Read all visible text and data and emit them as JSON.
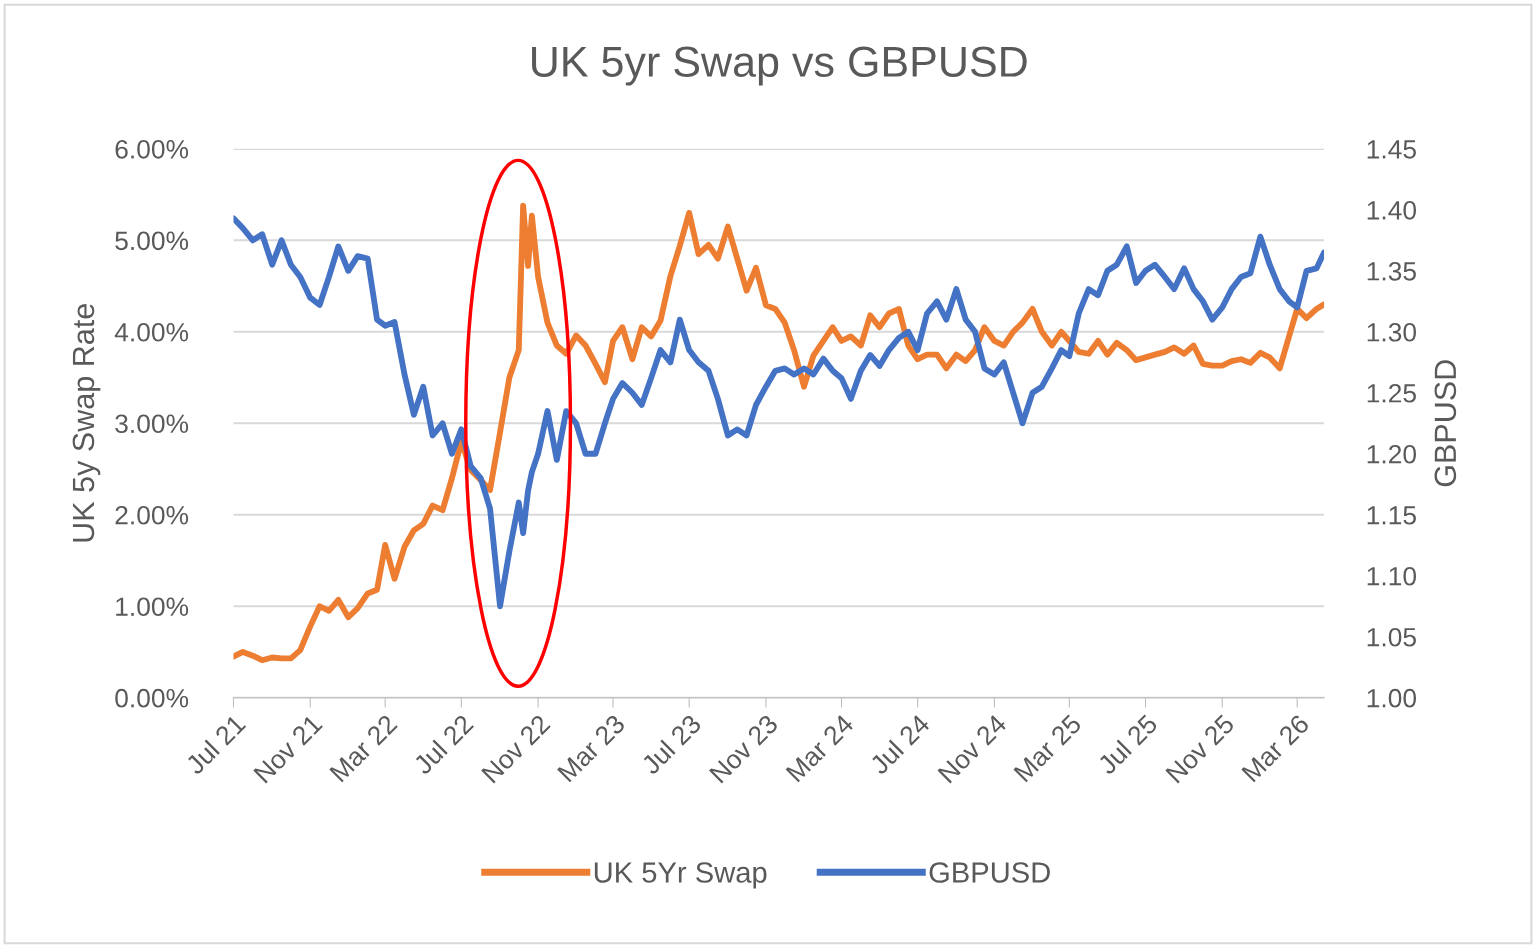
{
  "chart_data": {
    "type": "line",
    "title": "UK 5yr Swap vs GBPUSD",
    "ylabel": "UK 5y Swap Rate",
    "y2label": "GBPUSD",
    "grid": "y",
    "legend": "bottom",
    "marker": "none",
    "line_style": "solid",
    "x": [
      "2021-07-01",
      "2021-07-16",
      "2021-08-01",
      "2021-08-16",
      "2021-09-01",
      "2021-09-16",
      "2021-10-01",
      "2021-10-16",
      "2021-11-01",
      "2021-11-16",
      "2021-12-01",
      "2021-12-16",
      "2022-01-01",
      "2022-01-16",
      "2022-02-01",
      "2022-02-16",
      "2022-03-01",
      "2022-03-16",
      "2022-04-01",
      "2022-04-16",
      "2022-05-01",
      "2022-05-16",
      "2022-06-01",
      "2022-06-16",
      "2022-07-01",
      "2022-07-16",
      "2022-08-01",
      "2022-08-16",
      "2022-09-01",
      "2022-09-16",
      "2022-10-01",
      "2022-10-08",
      "2022-10-16",
      "2022-10-22",
      "2022-11-01",
      "2022-11-16",
      "2022-12-01",
      "2022-12-16",
      "2023-01-01",
      "2023-01-16",
      "2023-02-01",
      "2023-02-16",
      "2023-03-01",
      "2023-03-16",
      "2023-04-01",
      "2023-04-16",
      "2023-05-01",
      "2023-05-16",
      "2023-06-01",
      "2023-06-16",
      "2023-07-01",
      "2023-07-16",
      "2023-08-01",
      "2023-08-16",
      "2023-09-01",
      "2023-09-16",
      "2023-10-01",
      "2023-10-16",
      "2023-11-01",
      "2023-11-16",
      "2023-12-01",
      "2023-12-16",
      "2024-01-01",
      "2024-01-16",
      "2024-02-01",
      "2024-02-16",
      "2024-03-01",
      "2024-03-16",
      "2024-04-01",
      "2024-04-16",
      "2024-05-01",
      "2024-05-16",
      "2024-06-01",
      "2024-06-16",
      "2024-07-01",
      "2024-07-16",
      "2024-08-01",
      "2024-08-16",
      "2024-09-01",
      "2024-09-16",
      "2024-10-01",
      "2024-10-16",
      "2024-11-01",
      "2024-11-16",
      "2024-12-01",
      "2024-12-16",
      "2025-01-01",
      "2025-01-16",
      "2025-02-01",
      "2025-02-16",
      "2025-03-01",
      "2025-03-16",
      "2025-04-01",
      "2025-04-16",
      "2025-05-01",
      "2025-05-16",
      "2025-06-01",
      "2025-06-16",
      "2025-07-01",
      "2025-07-16",
      "2025-08-01",
      "2025-08-16",
      "2025-09-01",
      "2025-09-16",
      "2025-10-01",
      "2025-10-16",
      "2025-11-01",
      "2025-11-16",
      "2025-12-01",
      "2025-12-16",
      "2026-01-01",
      "2026-01-16",
      "2026-02-01",
      "2026-02-16",
      "2026-03-01",
      "2026-03-16",
      "2026-04-01",
      "2026-04-13"
    ],
    "xlim": [
      "2021-07-01",
      "2026-04-13"
    ],
    "xticks": [
      {
        "value": "2021-07-01",
        "label": "Jul 21"
      },
      {
        "value": "2021-11-01",
        "label": "Nov 21"
      },
      {
        "value": "2022-03-01",
        "label": "Mar 22"
      },
      {
        "value": "2022-07-01",
        "label": "Jul 22"
      },
      {
        "value": "2022-11-01",
        "label": "Nov 22"
      },
      {
        "value": "2023-03-01",
        "label": "Mar 23"
      },
      {
        "value": "2023-07-01",
        "label": "Jul 23"
      },
      {
        "value": "2023-11-01",
        "label": "Nov 23"
      },
      {
        "value": "2024-03-01",
        "label": "Mar 24"
      },
      {
        "value": "2024-07-01",
        "label": "Jul 24"
      },
      {
        "value": "2024-11-01",
        "label": "Nov 24"
      },
      {
        "value": "2025-03-01",
        "label": "Mar 25"
      },
      {
        "value": "2025-07-01",
        "label": "Jul 25"
      },
      {
        "value": "2025-11-01",
        "label": "Nov 25"
      },
      {
        "value": "2026-03-01",
        "label": "Mar 26"
      }
    ],
    "ylim": [
      0,
      6
    ],
    "yticks": [
      {
        "value": 0,
        "label": "0.00%"
      },
      {
        "value": 1,
        "label": "1.00%"
      },
      {
        "value": 2,
        "label": "2.00%"
      },
      {
        "value": 3,
        "label": "3.00%"
      },
      {
        "value": 4,
        "label": "4.00%"
      },
      {
        "value": 5,
        "label": "5.00%"
      },
      {
        "value": 6,
        "label": "6.00%"
      }
    ],
    "y2lim": [
      1.0,
      1.45
    ],
    "y2ticks": [
      {
        "value": 1.0,
        "label": "1.00"
      },
      {
        "value": 1.05,
        "label": "1.05"
      },
      {
        "value": 1.1,
        "label": "1.10"
      },
      {
        "value": 1.15,
        "label": "1.15"
      },
      {
        "value": 1.2,
        "label": "1.20"
      },
      {
        "value": 1.25,
        "label": "1.25"
      },
      {
        "value": 1.3,
        "label": "1.30"
      },
      {
        "value": 1.35,
        "label": "1.35"
      },
      {
        "value": 1.4,
        "label": "1.40"
      },
      {
        "value": 1.45,
        "label": "1.45"
      }
    ],
    "series": [
      {
        "name": "UK 5Yr Swap",
        "color": "#ed7d31",
        "values": [
          0.45,
          0.5,
          0.46,
          0.41,
          0.44,
          0.43,
          0.43,
          0.52,
          0.78,
          1.0,
          0.95,
          1.07,
          0.88,
          0.98,
          1.14,
          1.18,
          1.67,
          1.3,
          1.65,
          1.83,
          1.9,
          2.1,
          2.05,
          2.4,
          2.8,
          2.49,
          2.38,
          2.27,
          2.9,
          3.5,
          3.8,
          5.38,
          4.72,
          5.27,
          4.6,
          4.1,
          3.85,
          3.76,
          3.96,
          3.85,
          3.65,
          3.45,
          3.9,
          4.05,
          3.7,
          4.05,
          3.95,
          4.12,
          4.61,
          4.94,
          5.3,
          4.85,
          4.95,
          4.8,
          5.15,
          4.8,
          4.45,
          4.7,
          4.29,
          4.25,
          4.1,
          3.8,
          3.4,
          3.74,
          3.9,
          4.05,
          3.9,
          3.95,
          3.85,
          4.18,
          4.05,
          4.2,
          4.25,
          3.85,
          3.7,
          3.75,
          3.75,
          3.6,
          3.75,
          3.68,
          3.8,
          4.05,
          3.9,
          3.85,
          4.0,
          4.1,
          4.25,
          4.0,
          3.85,
          4.0,
          3.9,
          3.78,
          3.76,
          3.9,
          3.75,
          3.88,
          3.8,
          3.69,
          3.72,
          3.75,
          3.78,
          3.83,
          3.76,
          3.85,
          3.65,
          3.63,
          3.63,
          3.68,
          3.7,
          3.66,
          3.77,
          3.72,
          3.6,
          3.95,
          4.25,
          4.15,
          4.25,
          4.3
        ]
      },
      {
        "name": "GBPUSD",
        "color": "#4472c4",
        "axis": "y2",
        "values": [
          1.393,
          1.385,
          1.375,
          1.38,
          1.355,
          1.375,
          1.355,
          1.345,
          1.328,
          1.322,
          1.345,
          1.37,
          1.35,
          1.362,
          1.36,
          1.31,
          1.305,
          1.308,
          1.265,
          1.232,
          1.255,
          1.215,
          1.225,
          1.2,
          1.22,
          1.19,
          1.18,
          1.155,
          1.075,
          1.12,
          1.16,
          1.135,
          1.17,
          1.185,
          1.2,
          1.235,
          1.195,
          1.235,
          1.225,
          1.2,
          1.2,
          1.225,
          1.245,
          1.258,
          1.25,
          1.24,
          1.262,
          1.285,
          1.275,
          1.31,
          1.285,
          1.275,
          1.268,
          1.245,
          1.215,
          1.22,
          1.215,
          1.24,
          1.255,
          1.268,
          1.27,
          1.265,
          1.27,
          1.265,
          1.278,
          1.268,
          1.262,
          1.245,
          1.268,
          1.281,
          1.272,
          1.285,
          1.295,
          1.3,
          1.285,
          1.315,
          1.325,
          1.31,
          1.335,
          1.31,
          1.3,
          1.27,
          1.265,
          1.275,
          1.25,
          1.225,
          1.25,
          1.255,
          1.27,
          1.285,
          1.28,
          1.315,
          1.335,
          1.33,
          1.35,
          1.355,
          1.37,
          1.34,
          1.35,
          1.355,
          1.345,
          1.335,
          1.352,
          1.335,
          1.325,
          1.31,
          1.32,
          1.335,
          1.345,
          1.348,
          1.378,
          1.355,
          1.335,
          1.325,
          1.32,
          1.35,
          1.352,
          1.365
        ]
      }
    ]
  }
}
